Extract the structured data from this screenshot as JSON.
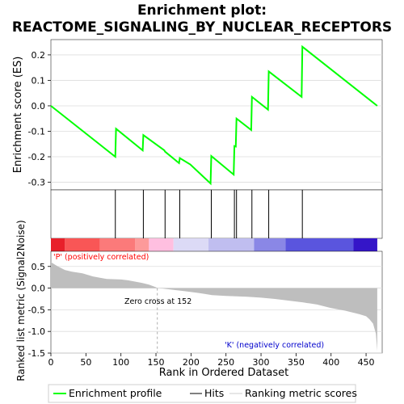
{
  "chart_data": {
    "type": "line",
    "title_line1": "Enrichment plot:",
    "title_line2": "REACTOME_SIGNALING_BY_NUCLEAR_RECEPTORS",
    "xlabel": "Rank in Ordered Dataset",
    "ylabel_es": "Enrichment score (ES)",
    "ylabel_metric": "Ranked list metric (Signal2Noise)",
    "xlim": [
      0,
      473
    ],
    "es_ylim": [
      -0.33,
      0.26
    ],
    "metric_ylim": [
      -1.5,
      0.85
    ],
    "x_ticks": [
      0,
      50,
      100,
      150,
      200,
      250,
      300,
      350,
      400,
      450
    ],
    "x_tick_labels": [
      "0",
      "50",
      "100",
      "150",
      "200",
      "250",
      "300",
      "350",
      "400",
      "450"
    ],
    "es_ticks": [
      0.2,
      0.1,
      0.0,
      -0.1,
      -0.2,
      -0.3
    ],
    "es_tick_labels": [
      "0.2",
      "0.1",
      "0.0",
      "-0.1",
      "-0.2",
      "-0.3"
    ],
    "metric_ticks": [
      0.5,
      0.0,
      -0.5,
      -1.0,
      -1.5
    ],
    "metric_tick_labels": [
      "0.5",
      "0.0",
      "-0.5",
      "-1.0",
      "-1.5"
    ],
    "hits": [
      92,
      132,
      163,
      184,
      229,
      262,
      265,
      287,
      311,
      359
    ],
    "es_curve": {
      "name": "Enrichment profile",
      "x": [
        0,
        92,
        93,
        131,
        132,
        162,
        163,
        183,
        184,
        199,
        228,
        229,
        261,
        262,
        264,
        265,
        286,
        287,
        310,
        311,
        358,
        359,
        466
      ],
      "y": [
        0.0,
        -0.2,
        -0.09,
        -0.175,
        -0.115,
        -0.175,
        -0.18,
        -0.225,
        -0.205,
        -0.23,
        -0.305,
        -0.197,
        -0.27,
        -0.158,
        -0.16,
        -0.05,
        -0.095,
        0.035,
        -0.015,
        0.135,
        0.035,
        0.232,
        0.0
      ]
    },
    "metric_profile": {
      "name": "Ranking metric scores",
      "x": [
        0,
        5,
        10,
        20,
        30,
        45,
        60,
        70,
        80,
        100,
        110,
        120,
        130,
        140,
        150,
        152,
        160,
        175,
        190,
        210,
        230,
        250,
        280,
        300,
        320,
        340,
        360,
        380,
        400,
        420,
        440,
        450,
        455,
        460,
        464,
        466
      ],
      "y": [
        0.6,
        0.55,
        0.5,
        0.42,
        0.38,
        0.34,
        0.27,
        0.24,
        0.21,
        0.2,
        0.18,
        0.15,
        0.12,
        0.08,
        0.02,
        0.0,
        -0.01,
        -0.04,
        -0.07,
        -0.11,
        -0.16,
        -0.18,
        -0.2,
        -0.22,
        -0.25,
        -0.29,
        -0.33,
        -0.38,
        -0.46,
        -0.52,
        -0.6,
        -0.65,
        -0.72,
        -0.82,
        -1.05,
        -1.45
      ]
    },
    "colorbar": [
      {
        "x0": 0,
        "x1": 20,
        "color": "#e8202a"
      },
      {
        "x0": 20,
        "x1": 70,
        "color": "#f95656"
      },
      {
        "x0": 70,
        "x1": 120,
        "color": "#fb7a7a"
      },
      {
        "x0": 120,
        "x1": 140,
        "color": "#fd9a9a"
      },
      {
        "x0": 140,
        "x1": 175,
        "color": "#ffbfe0"
      },
      {
        "x0": 175,
        "x1": 225,
        "color": "#dcdaf6"
      },
      {
        "x0": 225,
        "x1": 290,
        "color": "#c0bef0"
      },
      {
        "x0": 290,
        "x1": 335,
        "color": "#8a87e6"
      },
      {
        "x0": 335,
        "x1": 432,
        "color": "#5a55de"
      },
      {
        "x0": 432,
        "x1": 466,
        "color": "#3415c8"
      }
    ],
    "annotations": {
      "positive": "'P' (positively correlated)",
      "negative": "'K' (negatively correlated)",
      "zero_cross": "Zero cross at 152",
      "zero_cross_x": 152
    },
    "legend": {
      "items": [
        "Enrichment profile",
        "Hits",
        "Ranking metric scores"
      ],
      "placement": "bottom"
    },
    "colors": {
      "es_line": "#00ff00",
      "hit": "#000000",
      "metric_fill": "#bebebe",
      "positive_text": "#ff0000",
      "negative_text": "#0000cc",
      "grid": "#dddddd"
    }
  }
}
